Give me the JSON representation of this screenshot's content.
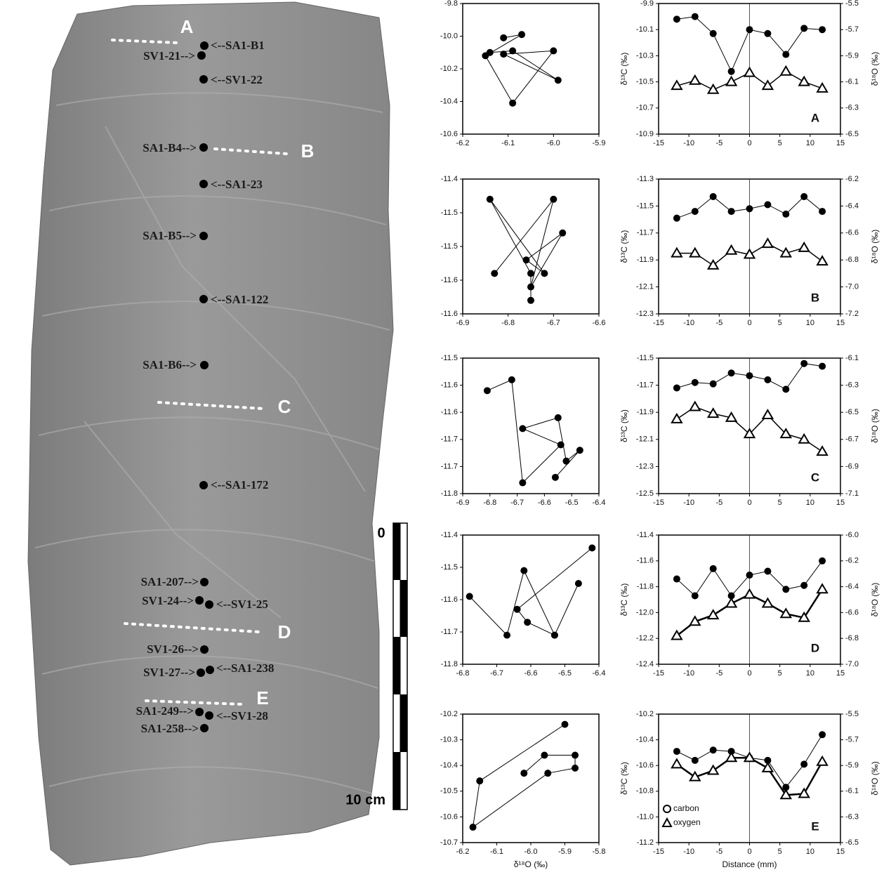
{
  "specimen": {
    "labels": [
      "<--SA1-B1",
      "SV1-21-->",
      "<--SV1-22",
      "SA1-B4-->",
      "<--SA1-23",
      "SA1-B5-->",
      "<--SA1-122",
      "SA1-B6-->",
      "<--SA1-172",
      "SA1-207-->",
      "SV1-24-->",
      "<--SV1-25",
      "SV1-26-->",
      "SV1-27-->",
      "<--SA1-238",
      "SA1-249-->",
      "<--SV1-28",
      "SA1-258-->"
    ],
    "sections": [
      "A",
      "B",
      "C",
      "D",
      "E"
    ],
    "scale": {
      "start": 0,
      "end": "10 cm"
    }
  },
  "chart_data": [
    {
      "type": "scatter",
      "lines": true,
      "color": "#000000",
      "x": [
        -6.11,
        -6.07,
        -6.15,
        -6.09,
        -6.0,
        -6.11,
        -5.99,
        -6.09,
        -6.14
      ],
      "values": [
        -10.01,
        -9.99,
        -10.12,
        -10.41,
        -10.09,
        -10.11,
        -10.27,
        -10.09,
        -10.1
      ],
      "xlim": [
        -6.2,
        -5.9
      ],
      "xticks": [
        -6.2,
        -6.1,
        {
          "value": -6,
          "label": "-6.0"
        },
        -5.9
      ],
      "ylim": [
        -10.6,
        -9.8
      ],
      "yticks": [
        -9.8,
        {
          "value": -10,
          "label": "-10.0"
        },
        -10.2,
        -10.4,
        -10.6
      ]
    },
    {
      "type": "line",
      "label": "A",
      "y_label": "δ¹³C (‰)",
      "y2_label": "δ¹⁸O (‰)",
      "zero_line": true,
      "x": [
        -12,
        -9,
        -6,
        -3,
        0,
        3,
        6,
        9,
        12
      ],
      "xlim": [
        -15,
        15
      ],
      "xticks": [
        -15,
        -10,
        -5,
        0,
        5,
        10,
        15
      ],
      "ylim": [
        -10.9,
        -9.9
      ],
      "yticks": [
        -9.9,
        -10.1,
        -10.3,
        -10.5,
        -10.7,
        -10.9
      ],
      "y2lim": [
        -6.5,
        -5.5
      ],
      "y2ticks": [
        -5.5,
        -5.7,
        -5.9,
        -6.1,
        -6.3,
        -6.5
      ],
      "series": [
        {
          "color": "#000000",
          "marker": "circle",
          "width": 1,
          "values": [
            -10.02,
            -10.0,
            -10.13,
            -10.42,
            -10.1,
            -10.13,
            -10.29,
            -10.09,
            -10.1
          ]
        },
        {
          "color": "#000000",
          "marker": "triangle",
          "width": 1.5,
          "axis": "y2",
          "values": [
            -6.13,
            -6.09,
            -6.16,
            -6.1,
            -6.03,
            -6.13,
            -6.02,
            -6.1,
            -6.15
          ]
        }
      ]
    },
    {
      "type": "scatter",
      "lines": true,
      "color": "#000000",
      "x": [
        -6.75,
        -6.75,
        -6.84,
        -6.72,
        -6.76,
        -6.68,
        -6.75,
        -6.7,
        -6.83
      ],
      "values": [
        -11.58,
        -11.54,
        -11.43,
        -11.54,
        -11.52,
        -11.48,
        -11.56,
        -11.43,
        -11.54
      ],
      "xlim": [
        -6.9,
        -6.6
      ],
      "xticks": [
        -6.9,
        -6.8,
        -6.7,
        -6.6
      ],
      "ylim": [
        -11.6,
        -11.4
      ],
      "yticks": [
        -11.4,
        {
          "value": -11.45,
          "label": "-11.5"
        },
        -11.5,
        {
          "value": -11.55,
          "label": "-11.6"
        },
        -11.6
      ]
    },
    {
      "type": "line",
      "label": "B",
      "y_label": "δ¹³C (‰)",
      "y2_label": "δ¹⁸O (‰)",
      "zero_line": true,
      "x": [
        -12,
        -9,
        -6,
        -3,
        0,
        3,
        6,
        9,
        12
      ],
      "xlim": [
        -15,
        15
      ],
      "xticks": [
        -15,
        -10,
        -5,
        0,
        5,
        10,
        15
      ],
      "ylim": [
        -12.3,
        -11.3
      ],
      "yticks": [
        -11.3,
        -11.5,
        -11.7,
        -11.9,
        -12.1,
        -12.3
      ],
      "y2lim": [
        -7.2,
        -6.2
      ],
      "y2ticks": [
        -6.2,
        -6.4,
        -6.6,
        -6.8,
        {
          "value": -7,
          "label": "-7.0"
        },
        -7.2
      ],
      "series": [
        {
          "color": "#000000",
          "marker": "circle",
          "width": 1,
          "values": [
            -11.59,
            -11.54,
            -11.43,
            -11.54,
            -11.52,
            -11.49,
            -11.56,
            -11.43,
            -11.54
          ]
        },
        {
          "color": "#000000",
          "marker": "triangle",
          "width": 1.5,
          "axis": "y2",
          "values": [
            -6.75,
            -6.75,
            -6.84,
            -6.73,
            -6.76,
            -6.68,
            -6.75,
            -6.71,
            -6.81
          ]
        }
      ]
    },
    {
      "type": "scatter",
      "lines": true,
      "color": "#000000",
      "x": [
        -6.56,
        -6.47,
        -6.52,
        -6.55,
        -6.68,
        -6.54,
        -6.68,
        -6.72,
        -6.81
      ],
      "values": [
        -11.72,
        -11.67,
        -11.69,
        -11.61,
        -11.63,
        -11.66,
        -11.73,
        -11.54,
        -11.56
      ],
      "xlim": [
        -6.9,
        -6.4
      ],
      "xticks": [
        -6.9,
        -6.8,
        -6.7,
        -6.6,
        -6.5,
        -6.4
      ],
      "ylim": [
        -11.75,
        -11.5
      ],
      "yticks": [
        -11.5,
        {
          "value": -11.55,
          "label": "-11.6"
        },
        -11.6,
        {
          "value": -11.65,
          "label": "-11.7"
        },
        -11.7,
        {
          "value": -11.75,
          "label": "-11.8"
        }
      ]
    },
    {
      "type": "line",
      "label": "C",
      "y_label": "δ¹³C (‰)",
      "y2_label": "δ¹⁸O (‰)",
      "zero_line": true,
      "x": [
        -12,
        -9,
        -6,
        -3,
        0,
        3,
        6,
        9,
        12
      ],
      "xlim": [
        -15,
        15
      ],
      "xticks": [
        -15,
        -10,
        -5,
        0,
        5,
        10,
        15
      ],
      "ylim": [
        -12.5,
        -11.5
      ],
      "yticks": [
        -11.5,
        -11.7,
        -11.9,
        -12.1,
        -12.3,
        -12.5
      ],
      "y2lim": [
        -7.1,
        -6.1
      ],
      "y2ticks": [
        -6.1,
        -6.3,
        -6.5,
        -6.7,
        -6.9,
        -7.1
      ],
      "series": [
        {
          "color": "#000000",
          "marker": "circle",
          "width": 1,
          "values": [
            -11.72,
            -11.68,
            -11.69,
            -11.61,
            -11.63,
            -11.66,
            -11.73,
            -11.54,
            -11.56
          ]
        },
        {
          "color": "#000000",
          "marker": "triangle",
          "width": 1.5,
          "axis": "y2",
          "values": [
            -6.55,
            -6.46,
            -6.51,
            -6.54,
            -6.66,
            -6.52,
            -6.66,
            -6.7,
            -6.79
          ]
        }
      ]
    },
    {
      "type": "scatter",
      "lines": true,
      "color": "#000000",
      "x": [
        -6.78,
        -6.67,
        -6.62,
        -6.53,
        -6.46,
        -6.53,
        -6.61,
        -6.64,
        -6.42
      ],
      "values": [
        -11.59,
        -11.71,
        -11.51,
        -11.71,
        -11.55,
        -11.71,
        -11.67,
        -11.63,
        -11.44
      ],
      "xlim": [
        -6.8,
        -6.4
      ],
      "xticks": [
        -6.8,
        -6.7,
        -6.6,
        -6.5,
        -6.4
      ],
      "ylim": [
        -11.8,
        -11.4
      ],
      "yticks": [
        -11.4,
        -11.5,
        -11.6,
        -11.7,
        -11.8
      ]
    },
    {
      "type": "line",
      "label": "D",
      "y_label": "δ¹³C (‰)",
      "y2_label": "δ¹⁸O (‰)",
      "zero_line": true,
      "x": [
        -12,
        -9,
        -6,
        -3,
        0,
        3,
        6,
        9,
        12
      ],
      "xlim": [
        -15,
        15
      ],
      "xticks": [
        -15,
        -10,
        -5,
        0,
        5,
        10,
        15
      ],
      "ylim": [
        -12.4,
        -11.4
      ],
      "yticks": [
        -11.4,
        -11.6,
        -11.8,
        {
          "value": -12,
          "label": "-12.0"
        },
        -12.2,
        -12.4
      ],
      "y2lim": [
        -7,
        -6
      ],
      "y2ticks": [
        {
          "value": -6,
          "label": "-6.0"
        },
        -6.2,
        -6.4,
        -6.6,
        -6.8,
        {
          "value": -7,
          "label": "-7.0"
        }
      ],
      "series": [
        {
          "color": "#000000",
          "marker": "circle",
          "width": 1,
          "values": [
            -11.74,
            -11.87,
            -11.66,
            -11.87,
            -11.71,
            -11.68,
            -11.82,
            -11.79,
            -11.6
          ]
        },
        {
          "color": "#000000",
          "marker": "triangle",
          "width": 2.5,
          "axis": "y2",
          "values": [
            -6.78,
            -6.67,
            -6.62,
            -6.53,
            -6.46,
            -6.53,
            -6.61,
            -6.64,
            -6.42
          ]
        }
      ]
    },
    {
      "type": "scatter",
      "lines": true,
      "color": "#000000",
      "x_label": "δ¹⁸O (‰)",
      "x": [
        -6.02,
        -5.96,
        -5.87,
        -5.87,
        -5.95,
        -6.17,
        -6.15,
        -5.9
      ],
      "values": [
        -10.43,
        -10.36,
        -10.36,
        -10.41,
        -10.43,
        -10.64,
        -10.46,
        -10.24
      ],
      "xlim": [
        -6.2,
        -5.8
      ],
      "xticks": [
        -6.2,
        -6.1,
        {
          "value": -6,
          "label": "-6.0"
        },
        -5.9,
        -5.8
      ],
      "ylim": [
        -10.7,
        -10.2
      ],
      "yticks": [
        -10.2,
        -10.3,
        -10.4,
        -10.5,
        -10.6,
        -10.7
      ]
    },
    {
      "type": "line",
      "label": "E",
      "y_label": "δ¹³C (‰)",
      "y2_label": "δ¹⁸O (‰)",
      "x_label": "Distance (mm)",
      "zero_line": true,
      "legend": "lower left",
      "x": [
        -12,
        -9,
        -6,
        -3,
        0,
        3,
        6,
        9,
        12
      ],
      "xlim": [
        -15,
        15
      ],
      "xticks": [
        -15,
        -10,
        -5,
        0,
        5,
        10,
        15
      ],
      "ylim": [
        -11.2,
        -10.2
      ],
      "yticks": [
        -10.2,
        -10.4,
        -10.6,
        -10.8,
        {
          "value": -11,
          "label": "-11.0"
        },
        -11.2
      ],
      "y2lim": [
        -6.5,
        -5.5
      ],
      "y2ticks": [
        -5.5,
        -5.7,
        -5.9,
        -6.1,
        -6.3,
        -6.5
      ],
      "series": [
        {
          "name": "carbon",
          "color": "#000000",
          "marker": "circle",
          "width": 1,
          "values": [
            -10.49,
            -10.56,
            -10.48,
            -10.49,
            -10.54,
            -10.56,
            -10.77,
            -10.59,
            -10.36
          ]
        },
        {
          "name": "oxygen",
          "color": "#000000",
          "marker": "triangle",
          "width": 2.5,
          "axis": "y2",
          "values": [
            -5.89,
            -5.99,
            -5.94,
            -5.84,
            -5.84,
            -5.92,
            -6.13,
            -6.12,
            -5.87
          ]
        }
      ]
    }
  ]
}
